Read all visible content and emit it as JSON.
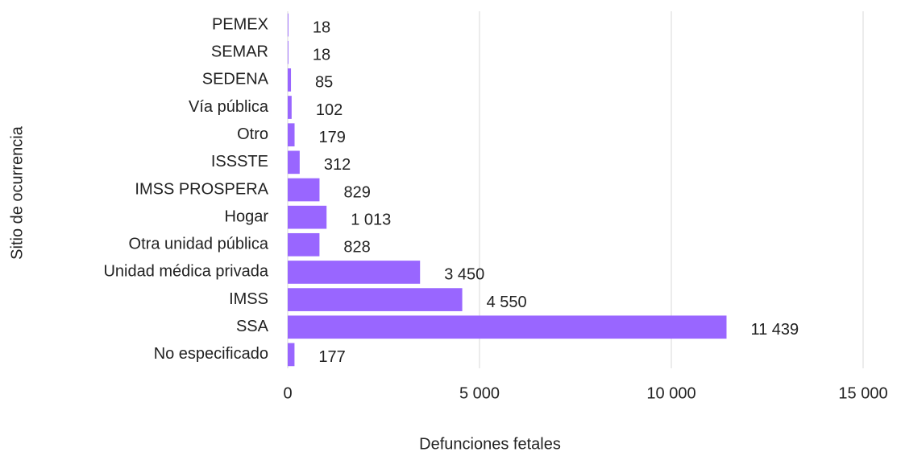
{
  "chart_data": {
    "type": "barh",
    "ylabel": "Sitio de ocurrencia",
    "xlabel": "Defunciones fetales",
    "categories": [
      "PEMEX",
      "SEMAR",
      "SEDENA",
      "Vía pública",
      "Otro",
      "ISSSTE",
      "IMSS PROSPERA",
      "Hogar",
      "Otra unidad pública",
      "Unidad médica privada",
      "IMSS",
      "SSA",
      "No especificado"
    ],
    "values": [
      18,
      18,
      85,
      102,
      179,
      312,
      829,
      1013,
      828,
      3450,
      4550,
      11439,
      177
    ],
    "value_labels": [
      "18",
      "18",
      "85",
      "102",
      "179",
      "312",
      "829",
      "1 013",
      "828",
      "3 450",
      "4 550",
      "11 439",
      "177"
    ],
    "color": "#9966ff",
    "xlim": [
      0,
      15000
    ],
    "xticks": [
      0,
      {
        "value": 5000,
        "label": "5 000"
      },
      {
        "value": 10000,
        "label": "10 000"
      },
      {
        "value": 15000,
        "label": "15 000"
      }
    ],
    "grid": true
  }
}
